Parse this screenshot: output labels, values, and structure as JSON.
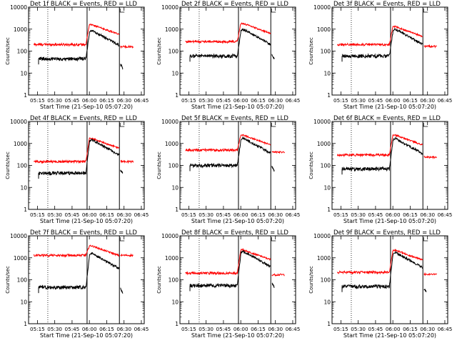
{
  "chart_data": {
    "type": "line",
    "y_scale": "log",
    "ylim": [
      1,
      10000
    ],
    "yticks": [
      1,
      10,
      100,
      1000,
      10000
    ],
    "ytick_labels": [
      "1",
      "10",
      "100",
      "1000",
      "10000"
    ],
    "xlim": [
      "05:07:20",
      "06:47:30"
    ],
    "xtick_labels": [
      "05:15",
      "05:30",
      "05:45",
      "06:00",
      "06:15",
      "06:30",
      "06:45"
    ],
    "ylabel": "Counts/sec",
    "xlabel": "Start Time (21-Sep-10 05:07:20)",
    "grid": false,
    "legend": "in title",
    "colors": {
      "events": "#000000",
      "lld": "#ff0000"
    },
    "panels": [
      {
        "title": "Det 1f BLACK = Events, RED = LLD",
        "markers": {
          "dotted": "05:24",
          "solid": [
            "05:58",
            "06:26"
          ]
        },
        "events": {
          "base": 45,
          "peak": 900,
          "post": 25,
          "post_end": 16
        },
        "lld": {
          "base": 200,
          "peak": 1600,
          "post": 160
        }
      },
      {
        "title": "Det 2f BLACK = Events, RED = LLD",
        "markers": {
          "dotted": "05:24",
          "solid": [
            "05:58",
            "06:26"
          ]
        },
        "events": {
          "base": 60,
          "peak": 1000,
          "post": 70,
          "post_end": 45
        },
        "lld": {
          "base": 270,
          "peak": 1800,
          "post": null
        }
      },
      {
        "title": "Det 3f BLACK = Events, RED = LLD",
        "markers": {
          "dotted": "05:24",
          "solid": [
            "05:58",
            "06:26"
          ]
        },
        "events": {
          "base": 60,
          "peak": 1000,
          "post": null
        },
        "lld": {
          "base": 200,
          "peak": 1300,
          "post": 165
        }
      },
      {
        "title": "Det 4f BLACK = Events, RED = LLD",
        "markers": {
          "dotted": "05:24",
          "solid": [
            "05:58",
            "06:26"
          ]
        },
        "events": {
          "base": 45,
          "peak": 1500,
          "post": 60,
          "post_end": 45
        },
        "lld": {
          "base": 150,
          "peak": 1700,
          "post": 150
        }
      },
      {
        "title": "Det 5f BLACK = Events, RED = LLD",
        "markers": {
          "dotted": "05:24",
          "solid": [
            "05:58",
            "06:26"
          ]
        },
        "events": {
          "base": 100,
          "peak": 1800,
          "post": 90,
          "post_end": 55
        },
        "lld": {
          "base": 500,
          "peak": 2400,
          "post": 400
        }
      },
      {
        "title": "Det 6f BLACK = Events, RED = LLD",
        "markers": {
          "dotted": "05:24",
          "solid": [
            "05:58",
            "06:26"
          ]
        },
        "events": {
          "base": 70,
          "peak": 1700,
          "post": null
        },
        "lld": {
          "base": 300,
          "peak": 2400,
          "post": 240
        }
      },
      {
        "title": "Det 7f BLACK = Events, RED = LLD",
        "markers": {
          "dotted": "05:24",
          "solid": [
            "05:58",
            "06:26"
          ]
        },
        "events": {
          "base": 45,
          "peak": 1600,
          "post": 40,
          "post_end": 25
        },
        "lld": {
          "base": 1300,
          "peak": 3500,
          "post": 1300
        }
      },
      {
        "title": "Det 8f BLACK = Events, RED = LLD",
        "markers": {
          "dotted": "05:24",
          "solid": [
            "05:58",
            "06:26"
          ]
        },
        "events": {
          "base": 55,
          "peak": 2000,
          "post": 70,
          "post_end": 45
        },
        "lld": {
          "base": 200,
          "peak": 2300,
          "post": 170
        }
      },
      {
        "title": "Det 9f BLACK = Events, RED = LLD",
        "markers": {
          "dotted": "05:24",
          "solid": [
            "05:58",
            "06:26"
          ]
        },
        "events": {
          "base": 50,
          "peak": 1800,
          "post": 40,
          "post_end": 30
        },
        "lld": {
          "base": 220,
          "peak": 2200,
          "post": 180
        }
      }
    ]
  }
}
